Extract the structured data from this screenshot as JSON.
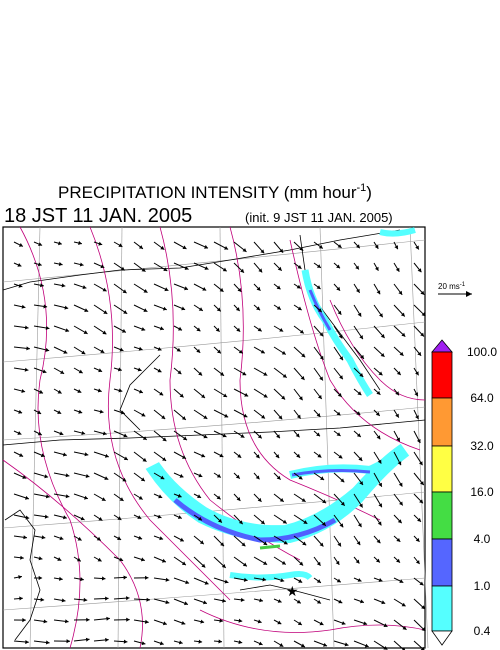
{
  "header": {
    "title": "PRECIPITATION INTENSITY (mm hour",
    "title_exponent": "-1",
    "title_close": ")",
    "valid_time": "18 JST 11 JAN. 2005",
    "init_time": "(init. 9 JST 11 JAN. 2005)"
  },
  "wind_scale": {
    "label": "20 ms",
    "exponent": "-1"
  },
  "colorbar": {
    "labels": [
      "100.0",
      "64.0",
      "32.0",
      "16.0",
      "4.0",
      "1.0",
      "0.4"
    ]
  }
}
